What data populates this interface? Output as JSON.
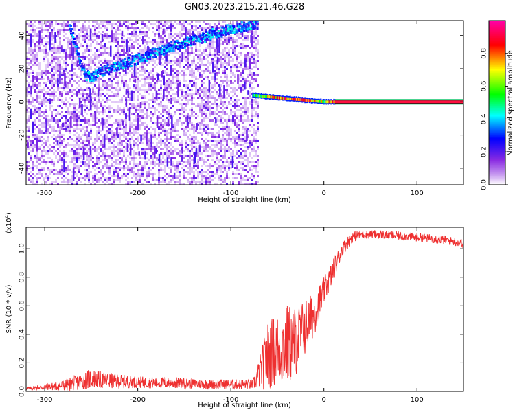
{
  "title": "GN03.2023.215.21.46.G28",
  "chart_data": [
    {
      "type": "heatmap",
      "xlabel": "Height of straight line (km)",
      "ylabel": "Frequency (Hz)",
      "xlim": [
        -320,
        150
      ],
      "ylim": [
        -50,
        49
      ],
      "xticks": [
        "-300",
        "-200",
        "-100",
        "0",
        "100"
      ],
      "yticks": [
        "-40",
        "-20",
        "0",
        "20",
        "40"
      ],
      "colorbar": {
        "label": "Normalized spectral amplitude",
        "range": [
          0,
          1
        ],
        "ticks": [
          "0.0",
          "0.2",
          "0.4",
          "0.6",
          "0.8"
        ],
        "colors": [
          "#ffffff",
          "#8a2be2",
          "#0000ff",
          "#00ffff",
          "#00ff00",
          "#ffff00",
          "#ff0000",
          "#ff00aa"
        ]
      },
      "noise_region_x": [
        -320,
        -72
      ],
      "signal_track": {
        "x": [
          -274,
          -268,
          -262,
          -256,
          -250,
          -240,
          -220,
          -200,
          -180,
          -160,
          -140,
          -120,
          -100,
          -80,
          -72
        ],
        "y": [
          46,
          34,
          24,
          16,
          15,
          18,
          22,
          26,
          30,
          34,
          37,
          41,
          44,
          46,
          47
        ]
      },
      "carrier_track": {
        "x": [
          -77,
          -60,
          -40,
          -20,
          0,
          12,
          150
        ],
        "y": [
          4,
          3,
          2,
          1,
          0,
          0,
          0
        ],
        "amplitude": [
          0.4,
          0.7,
          0.8,
          0.85,
          0.6,
          0.9,
          1.0
        ]
      }
    },
    {
      "type": "line",
      "xlabel": "Height of straight line (km)",
      "ylabel": "SNR (10 * v/v)",
      "yscale_label": "(x10",
      "yscale_exp": "4",
      "yscale_close": ")",
      "xlim": [
        -320,
        150
      ],
      "ylim": [
        0,
        1.15
      ],
      "xticks": [
        "-300",
        "-200",
        "-100",
        "0",
        "100"
      ],
      "yticks": [
        "0.0",
        "0.2",
        "0.4",
        "0.6",
        "0.8",
        "1.0"
      ],
      "color": "#ee3030",
      "series": [
        {
          "x": [
            -320,
            -300,
            -280,
            -260,
            -250,
            -240,
            -220,
            -200,
            -180,
            -160,
            -140,
            -120,
            -100,
            -80,
            -76,
            -70,
            -60,
            -50,
            -40,
            -30,
            -20,
            -10,
            0,
            10,
            20,
            30,
            40,
            60,
            80,
            100,
            120,
            140,
            150
          ],
          "values": [
            0.02,
            0.03,
            0.04,
            0.07,
            0.09,
            0.08,
            0.07,
            0.065,
            0.06,
            0.06,
            0.055,
            0.05,
            0.05,
            0.05,
            0.05,
            0.12,
            0.25,
            0.3,
            0.32,
            0.35,
            0.45,
            0.55,
            0.7,
            0.85,
            1.0,
            1.08,
            1.1,
            1.1,
            1.09,
            1.08,
            1.07,
            1.05,
            1.04
          ],
          "noise": [
            0.01,
            0.02,
            0.04,
            0.06,
            0.07,
            0.06,
            0.05,
            0.04,
            0.04,
            0.04,
            0.035,
            0.035,
            0.035,
            0.035,
            0.035,
            0.1,
            0.25,
            0.25,
            0.3,
            0.25,
            0.2,
            0.15,
            0.1,
            0.08,
            0.05,
            0.04,
            0.03,
            0.03,
            0.03,
            0.03,
            0.03,
            0.03,
            0.03
          ]
        }
      ]
    }
  ]
}
